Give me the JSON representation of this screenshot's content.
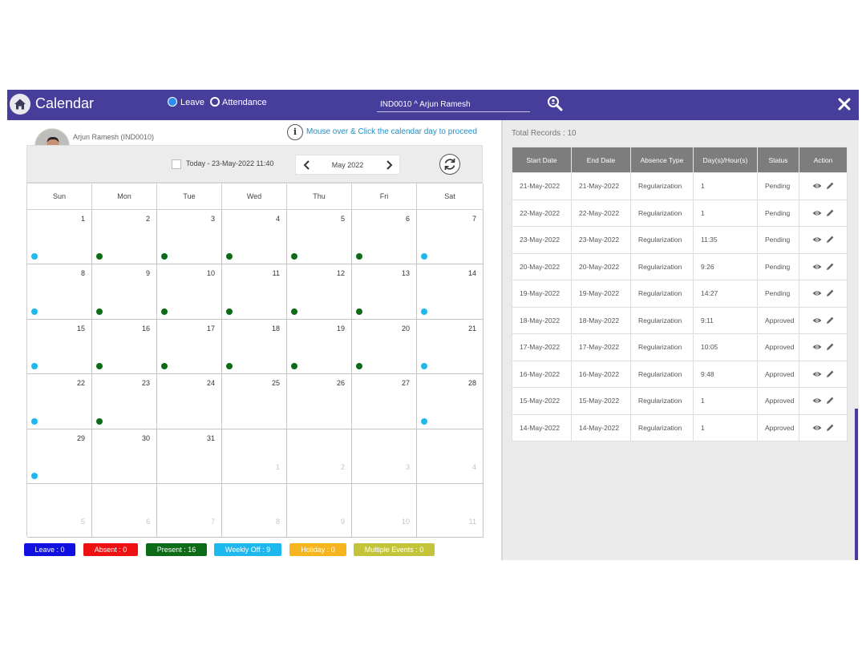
{
  "header": {
    "title": "Calendar",
    "radio_leave": "Leave",
    "radio_attendance": "Attendance",
    "employee_field": "IND0010 ^ Arjun Ramesh"
  },
  "left": {
    "employee_name": "Arjun Ramesh (IND0010)",
    "hint": "Mouse over & Click the calendar day to proceed",
    "today_label": "Today - 23-May-2022 11:40",
    "month_label": "May 2022"
  },
  "calendar": {
    "weekdays": [
      "Sun",
      "Mon",
      "Tue",
      "Wed",
      "Thu",
      "Fri",
      "Sat"
    ],
    "days": [
      {
        "d": "1",
        "t": "weekly_off"
      },
      {
        "d": "2",
        "t": "present"
      },
      {
        "d": "3",
        "t": "present"
      },
      {
        "d": "4",
        "t": "present"
      },
      {
        "d": "5",
        "t": "present"
      },
      {
        "d": "6",
        "t": "present"
      },
      {
        "d": "7",
        "t": "weekly_off"
      },
      {
        "d": "8",
        "t": "weekly_off"
      },
      {
        "d": "9",
        "t": "present"
      },
      {
        "d": "10",
        "t": "present"
      },
      {
        "d": "11",
        "t": "present"
      },
      {
        "d": "12",
        "t": "present"
      },
      {
        "d": "13",
        "t": "present"
      },
      {
        "d": "14",
        "t": "weekly_off"
      },
      {
        "d": "15",
        "t": "weekly_off"
      },
      {
        "d": "16",
        "t": "present"
      },
      {
        "d": "17",
        "t": "present"
      },
      {
        "d": "18",
        "t": "present"
      },
      {
        "d": "19",
        "t": "present"
      },
      {
        "d": "20",
        "t": "present"
      },
      {
        "d": "21",
        "t": "weekly_off"
      },
      {
        "d": "22",
        "t": "weekly_off"
      },
      {
        "d": "23",
        "t": "present"
      },
      {
        "d": "24",
        "t": ""
      },
      {
        "d": "25",
        "t": ""
      },
      {
        "d": "26",
        "t": ""
      },
      {
        "d": "27",
        "t": ""
      },
      {
        "d": "28",
        "t": "weekly_off"
      },
      {
        "d": "29",
        "t": "weekly_off"
      },
      {
        "d": "30",
        "t": ""
      },
      {
        "d": "31",
        "t": ""
      },
      {
        "d": "1",
        "t": "",
        "o": true
      },
      {
        "d": "2",
        "t": "",
        "o": true
      },
      {
        "d": "3",
        "t": "",
        "o": true
      },
      {
        "d": "4",
        "t": "",
        "o": true
      },
      {
        "d": "5",
        "t": "",
        "o": true
      },
      {
        "d": "6",
        "t": "",
        "o": true
      },
      {
        "d": "7",
        "t": "",
        "o": true
      },
      {
        "d": "8",
        "t": "",
        "o": true
      },
      {
        "d": "9",
        "t": "",
        "o": true
      },
      {
        "d": "10",
        "t": "",
        "o": true
      },
      {
        "d": "11",
        "t": "",
        "o": true
      }
    ],
    "dot_colors": {
      "present": "#0b6b16",
      "weekly_off": "#1cb8ee"
    }
  },
  "legend": [
    {
      "label": "Leave : 0",
      "color": "#1010e0"
    },
    {
      "label": "Absent : 0",
      "color": "#ee1111"
    },
    {
      "label": "Present : 16",
      "color": "#0b6b16"
    },
    {
      "label": "Weekly Off : 9",
      "color": "#1cb8ee"
    },
    {
      "label": "Holiday : 0",
      "color": "#f7b51d"
    },
    {
      "label": "Multiple Events : 0",
      "color": "#c3c43a"
    }
  ],
  "right": {
    "total_records": "Total Records : 10",
    "columns": [
      "Start Date",
      "End Date",
      "Absence Type",
      "Day(s)/Hour(s)",
      "Status",
      "Action"
    ],
    "rows": [
      [
        "21-May-2022",
        "21-May-2022",
        "Regularization",
        "1",
        "Pending"
      ],
      [
        "22-May-2022",
        "22-May-2022",
        "Regularization",
        "1",
        "Pending"
      ],
      [
        "23-May-2022",
        "23-May-2022",
        "Regularization",
        "11:35",
        "Pending"
      ],
      [
        "20-May-2022",
        "20-May-2022",
        "Regularization",
        "9:26",
        "Pending"
      ],
      [
        "19-May-2022",
        "19-May-2022",
        "Regularization",
        "14:27",
        "Pending"
      ],
      [
        "18-May-2022",
        "18-May-2022",
        "Regularization",
        "9:11",
        "Approved"
      ],
      [
        "17-May-2022",
        "17-May-2022",
        "Regularization",
        "10:05",
        "Approved"
      ],
      [
        "16-May-2022",
        "16-May-2022",
        "Regularization",
        "9:48",
        "Approved"
      ],
      [
        "15-May-2022",
        "15-May-2022",
        "Regularization",
        "1",
        "Approved"
      ],
      [
        "14-May-2022",
        "14-May-2022",
        "Regularization",
        "1",
        "Approved"
      ]
    ]
  },
  "icons": {
    "home": "home-icon",
    "search": "search-user-icon",
    "close": "close-icon",
    "info": "info-icon",
    "refresh": "refresh-icon",
    "view": "eye-icon",
    "edit": "pencil-icon"
  }
}
